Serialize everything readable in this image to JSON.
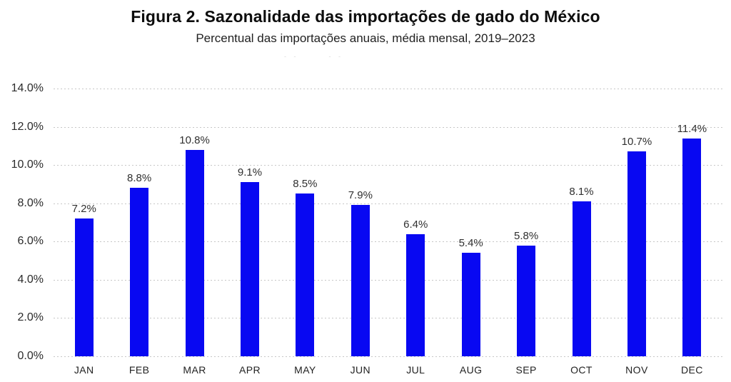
{
  "page": {
    "artifact_marks": [
      "- -",
      "- -"
    ]
  },
  "chart_data": {
    "type": "bar",
    "title": "Figura 2. Sazonalidade das importações de gado do México",
    "subtitle": "Percentual das importações anuais, média mensal, 2019–2023",
    "categories": [
      "JAN",
      "FEB",
      "MAR",
      "APR",
      "MAY",
      "JUN",
      "JUL",
      "AUG",
      "SEP",
      "OCT",
      "NOV",
      "DEC"
    ],
    "values": [
      7.2,
      8.8,
      10.8,
      9.1,
      8.5,
      7.9,
      6.4,
      5.4,
      5.8,
      8.1,
      10.7,
      11.4
    ],
    "value_labels": [
      "7.2%",
      "8.8%",
      "10.8%",
      "9.1%",
      "8.5%",
      "7.9%",
      "6.4%",
      "5.4%",
      "5.8%",
      "8.1%",
      "10.7%",
      "11.4%"
    ],
    "xlabel": "",
    "ylabel": "",
    "ylim": [
      0,
      14
    ],
    "yticks": [
      {
        "label": "0.0%",
        "value": 0
      },
      {
        "label": "2.0%",
        "value": 2
      },
      {
        "label": "4.0%",
        "value": 4
      },
      {
        "label": "6.0%",
        "value": 6
      },
      {
        "label": "8.0%",
        "value": 8
      },
      {
        "label": "10.0%",
        "value": 10
      },
      {
        "label": "12.0%",
        "value": 12
      },
      {
        "label": "14.0%",
        "value": 14
      }
    ],
    "grid": "horizontal-dotted",
    "legend": null,
    "bar_color": "#0808f2",
    "label_color": "#303030"
  }
}
